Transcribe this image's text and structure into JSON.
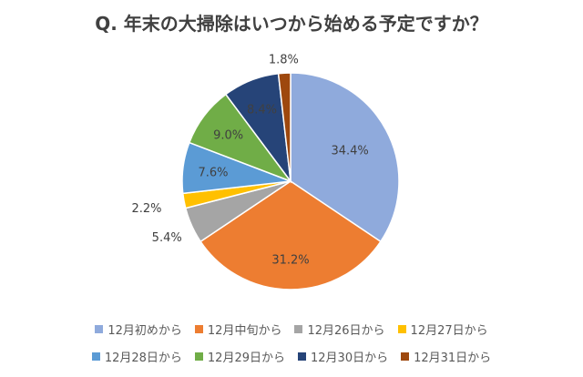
{
  "chart_data": {
    "type": "pie",
    "title": "Q. 年末の大掃除はいつから始める予定ですか？",
    "slices": [
      {
        "label": "12月初めから",
        "value": 34.4,
        "value_label": "34.4%",
        "color": "#8faadc"
      },
      {
        "label": "12月中旬から",
        "value": 31.2,
        "value_label": "31.2%",
        "color": "#ed7d31"
      },
      {
        "label": "12月26日から",
        "value": 5.4,
        "value_label": "5.4%",
        "color": "#a5a5a5"
      },
      {
        "label": "12月27日から",
        "value": 2.2,
        "value_label": "2.2%",
        "color": "#ffc000"
      },
      {
        "label": "12月28日から",
        "value": 7.6,
        "value_label": "7.6%",
        "color": "#5b9bd5"
      },
      {
        "label": "12月29日から",
        "value": 9.0,
        "value_label": "9.0%",
        "color": "#70ad47"
      },
      {
        "label": "12月30日から",
        "value": 8.4,
        "value_label": "8.4%",
        "color": "#264478"
      },
      {
        "label": "12月31日から",
        "value": 1.8,
        "value_label": "1.8%",
        "color": "#9e480e"
      }
    ],
    "legend_position": "bottom"
  }
}
